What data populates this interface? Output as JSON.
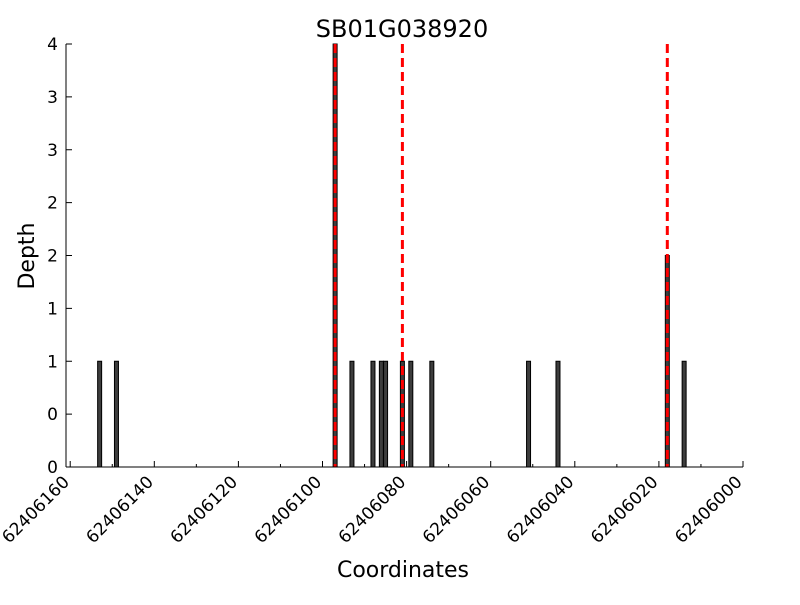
{
  "chart_data": {
    "type": "bar",
    "title": "SB01G038920",
    "xlabel": "Coordinates",
    "ylabel": "Depth",
    "xlim": [
      62406000,
      62406161
    ],
    "ylim": [
      0,
      4
    ],
    "x_reversed": true,
    "grid": false,
    "x_ticks": [
      62406160,
      62406140,
      62406120,
      62406100,
      62406080,
      62406060,
      62406040,
      62406020,
      62406000
    ],
    "y_tick_labels": [
      "0",
      "0",
      "1",
      "1",
      "2",
      "2",
      "3",
      "3",
      "4"
    ],
    "series": [
      {
        "x": [
          62406153,
          62406149,
          62406097,
          62406093,
          62406088,
          62406086,
          62406085,
          62406081,
          62406079,
          62406074,
          62406051,
          62406044,
          62406018,
          62406014
        ],
        "values": [
          1,
          1,
          4,
          1,
          1,
          1,
          1,
          1,
          1,
          1,
          1,
          1,
          2,
          1
        ]
      }
    ],
    "vlines": [
      62406097,
      62406081,
      62406018
    ],
    "colors": {
      "bar_fill": "#3d3d3d",
      "bar_edge": "#000000",
      "vline": "#ff0000"
    }
  }
}
